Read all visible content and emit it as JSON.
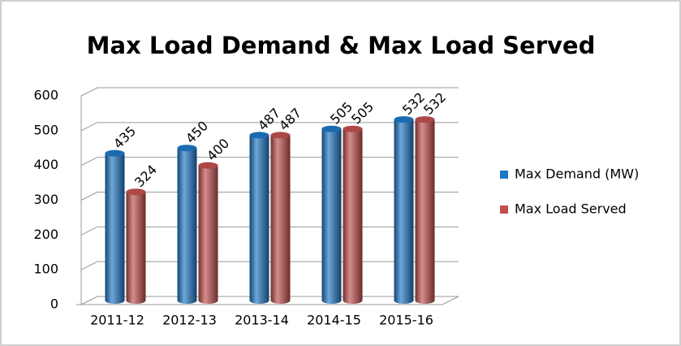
{
  "chart_data": {
    "type": "bar",
    "title": "Max Load Demand & Max Load Served",
    "categories": [
      "2011-12",
      "2012-13",
      "2013-14",
      "2014-15",
      "2015-16"
    ],
    "series": [
      {
        "name": "Max Demand (MW)",
        "color": "#1f77c4",
        "values": [
          435,
          450,
          487,
          505,
          532
        ]
      },
      {
        "name": "Max Load Served",
        "color": "#c0504d",
        "values": [
          324,
          400,
          487,
          505,
          532
        ]
      }
    ],
    "ylim": [
      0,
      600
    ],
    "yticks": [
      0,
      100,
      200,
      300,
      400,
      500,
      600
    ],
    "grid": true,
    "legend": "right"
  }
}
